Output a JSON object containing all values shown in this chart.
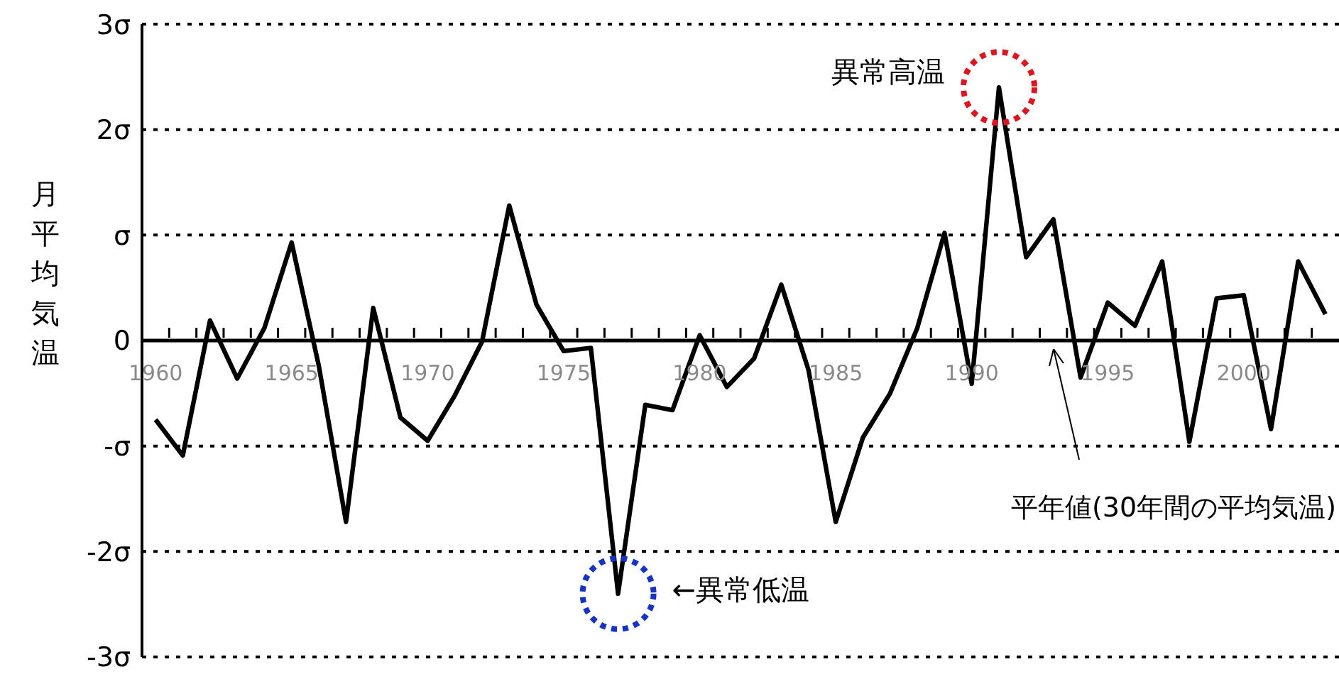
{
  "chart_data": {
    "type": "line",
    "ylabel": "月平均気温",
    "categories": [
      "1960",
      null,
      null,
      null,
      null,
      "1965",
      null,
      null,
      null,
      null,
      "1970",
      null,
      null,
      null,
      null,
      "1975",
      null,
      null,
      null,
      null,
      "1980",
      null,
      null,
      null,
      null,
      "1985",
      null,
      null,
      null,
      null,
      "1990",
      null,
      null,
      null,
      null,
      "1995",
      null,
      null,
      null,
      null,
      "2000",
      null,
      null,
      null
    ],
    "series": [
      {
        "color": "#000000",
        "values": [
          -0.75,
          -1.09,
          0.19,
          -0.36,
          0.12,
          0.93,
          -0.24,
          -1.72,
          0.31,
          -0.73,
          -0.95,
          -0.52,
          -0.01,
          1.28,
          0.34,
          -0.1,
          -0.07,
          -2.4,
          -0.61,
          -0.66,
          0.05,
          -0.44,
          -0.17,
          0.53,
          -0.28,
          -1.72,
          -0.92,
          -0.5,
          0.12,
          1.02,
          -0.41,
          2.4,
          0.79,
          1.15,
          -0.35,
          0.36,
          0.14,
          0.75,
          -0.96,
          0.4,
          0.43,
          -0.84,
          0.75,
          0.25
        ]
      }
    ],
    "ylim": [
      -3,
      3
    ],
    "yticks": [
      {
        "value": -3,
        "label": "-3σ"
      },
      {
        "value": -2,
        "label": "-2σ"
      },
      {
        "value": -1,
        "label": "-σ"
      },
      0,
      {
        "value": 1,
        "label": "σ"
      },
      {
        "value": 2,
        "label": "2σ"
      },
      {
        "value": 3,
        "label": "3σ"
      }
    ],
    "grid": "y",
    "annotations": [
      "異常高温",
      "←異常低温",
      "平年値(30年間の平均気温)"
    ]
  }
}
